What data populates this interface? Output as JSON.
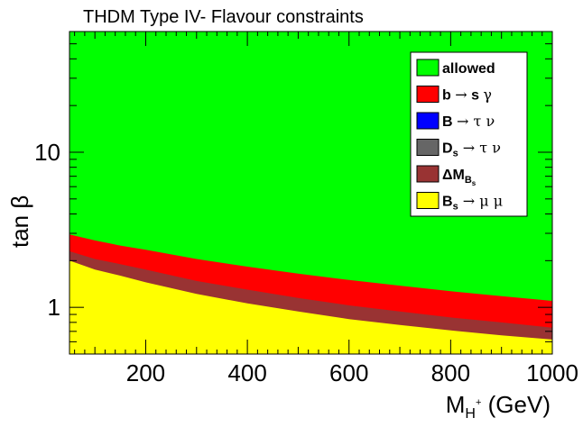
{
  "chart_data": {
    "type": "area",
    "title": "THDM Type IV- Flavour constraints",
    "xlabel": {
      "main": "M",
      "sub": "H",
      "sup": "+",
      "unit": " (GeV)"
    },
    "ylabel": "tan β",
    "xlim": [
      50,
      1000
    ],
    "ylim": [
      0.5,
      60
    ],
    "yscale": "log",
    "x_ticks": [
      200,
      400,
      600,
      800,
      1000
    ],
    "x_tick_labels": [
      "200",
      "400",
      "600",
      "800",
      "1000"
    ],
    "y_ticks": [
      1,
      10
    ],
    "y_tick_labels": [
      "1",
      "10"
    ],
    "colors": {
      "allowed": "#00ff00",
      "bsgamma": "#ff0000",
      "btaunu": "#0000ff",
      "dstaunu": "#666666",
      "deltamb": "#993333",
      "bsmumu": "#ffff00"
    },
    "boundaries": {
      "x": [
        50,
        100,
        150,
        200,
        300,
        400,
        500,
        600,
        700,
        800,
        900,
        1000
      ],
      "bsgamma_upper": [
        2.95,
        2.7,
        2.5,
        2.35,
        2.05,
        1.83,
        1.65,
        1.5,
        1.38,
        1.27,
        1.18,
        1.1
      ],
      "deltamb_upper": [
        2.3,
        2.05,
        1.9,
        1.75,
        1.48,
        1.3,
        1.15,
        1.03,
        0.94,
        0.86,
        0.8,
        0.74
      ],
      "bsmumu_upper": [
        2.0,
        1.75,
        1.6,
        1.45,
        1.22,
        1.06,
        0.94,
        0.84,
        0.77,
        0.71,
        0.66,
        0.62
      ]
    },
    "legend": {
      "position": "top-right",
      "entries": [
        {
          "key": "allowed",
          "parts": [
            {
              "t": "allowed"
            }
          ]
        },
        {
          "key": "bsgamma",
          "parts": [
            {
              "t": "b "
            },
            {
              "t": "→",
              "sym": true
            },
            {
              "t": " s "
            },
            {
              "t": "γ",
              "sym": true
            }
          ]
        },
        {
          "key": "btaunu",
          "parts": [
            {
              "t": "B "
            },
            {
              "t": "→",
              "sym": true
            },
            {
              "t": " τ ",
              "sym": true
            },
            {
              "t": "ν",
              "sym": true
            }
          ]
        },
        {
          "key": "dstaunu",
          "parts": [
            {
              "t": "D"
            },
            {
              "t": "s",
              "sub": true
            },
            {
              "t": " →",
              "sym": true
            },
            {
              "t": " τ ",
              "sym": true
            },
            {
              "t": "ν",
              "sym": true
            }
          ]
        },
        {
          "key": "deltamb",
          "parts": [
            {
              "t": "ΔM"
            },
            {
              "t": "B",
              "sub": true
            },
            {
              "t": "s",
              "subsub": true
            }
          ]
        },
        {
          "key": "bsmumu",
          "parts": [
            {
              "t": "B"
            },
            {
              "t": "s",
              "sub": true
            },
            {
              "t": " →",
              "sym": true
            },
            {
              "t": " μ ",
              "sym": true
            },
            {
              "t": "μ",
              "sym": true
            }
          ]
        }
      ]
    }
  }
}
